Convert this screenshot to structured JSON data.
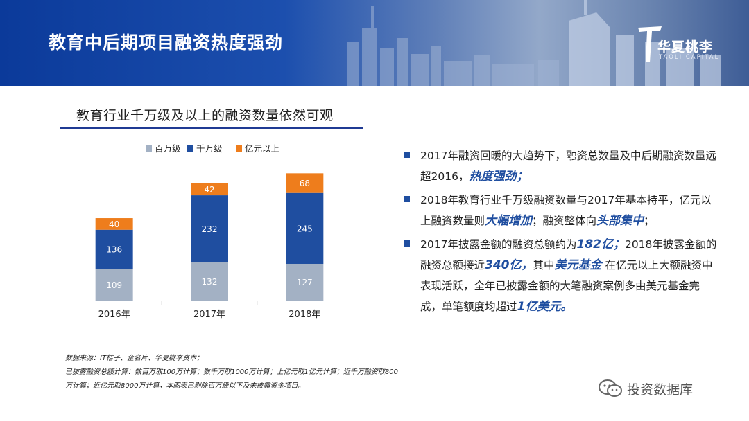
{
  "header": {
    "title": "教育中后期项目融资热度强劲",
    "logo_name": "华夏桃李",
    "logo_en": "TAOLI CAPITAL"
  },
  "subtitle": "教育行业千万级及以上的融资数量依然可观",
  "chart_data": {
    "type": "bar",
    "stacked": true,
    "categories": [
      "2016年",
      "2017年",
      "2018年"
    ],
    "series": [
      {
        "name": "百万级",
        "values": [
          109,
          132,
          127
        ],
        "color": "#a3b1c4"
      },
      {
        "name": "千万级",
        "values": [
          136,
          232,
          245
        ],
        "color": "#1f4ea0"
      },
      {
        "name": "亿元以上",
        "values": [
          40,
          42,
          68
        ],
        "color": "#ee7d1c"
      }
    ],
    "legend_position": "top",
    "grid": false,
    "ylim": [
      0,
      460
    ],
    "title": "",
    "xlabel": "",
    "ylabel": ""
  },
  "bullets": [
    {
      "segments": [
        {
          "text": "2017年融资回暖的大趋势下，融资总数量及中后期融资数量远超2016，",
          "em": false
        },
        {
          "text": "热度强劲；",
          "em": true
        }
      ]
    },
    {
      "segments": [
        {
          "text": "2018年教育行业千万级融资数量与2017年基本持平，亿元以上融资数量则",
          "em": false
        },
        {
          "text": "大幅增加",
          "em": true
        },
        {
          "text": "；融资整体向",
          "em": false
        },
        {
          "text": "头部集中",
          "em": true
        },
        {
          "text": "；",
          "em": false
        }
      ]
    },
    {
      "segments": [
        {
          "text": "2017年披露金额的融资总额约为",
          "em": false
        },
        {
          "text": "182亿；",
          "em": true
        },
        {
          "text": "2018年披露金额的融资总额接近",
          "em": false
        },
        {
          "text": "340亿，",
          "em": true
        },
        {
          "text": "其中",
          "em": false
        },
        {
          "text": "美元基金",
          "em": true
        },
        {
          "text": " 在亿元以上大额融资中表现活跃，全年已披露金额的大笔融资案例多由美元基金完成，单笔额度均超过",
          "em": false
        },
        {
          "text": "1亿美元。",
          "em": true
        }
      ]
    }
  ],
  "source_lines": [
    "数据来源：IT桔子、企名片、华夏桃李资本；",
    "已披露融资总额计算：数百万取100万计算；数千万取1000万计算；上亿元取1亿元计算；近千万融资取800万计算；近亿元取8000万计算，本图表已剔除百万级以下及未披露资金项目。"
  ],
  "watermark": {
    "text": "投资数据库",
    "icon": "wechat-icon"
  }
}
